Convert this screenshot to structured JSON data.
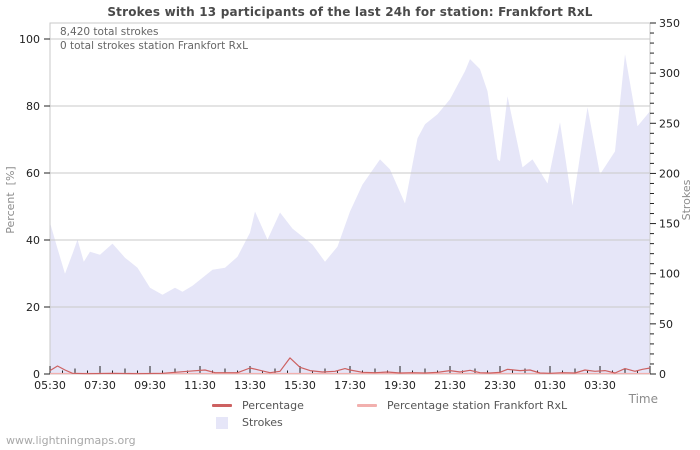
{
  "title": "Strokes with 13 participants of the last 24h for station: Frankfort RxL",
  "annotations": {
    "total_strokes": "8,420 total strokes",
    "station_total_strokes": "0 total strokes station Frankfort RxL"
  },
  "watermark": "www.lightningmaps.org",
  "axes": {
    "left": {
      "title": "Percent  [%]",
      "ticks": [
        0,
        20,
        40,
        60,
        80,
        100
      ],
      "range": [
        0,
        100
      ]
    },
    "right": {
      "title": "Strokes",
      "major_ticks": [
        0,
        50,
        100,
        150,
        200,
        250,
        300,
        350
      ],
      "minor_step": 10,
      "range": [
        0,
        350
      ]
    },
    "x": {
      "title": "Time",
      "labels": [
        "05:30",
        "07:30",
        "09:30",
        "11:30",
        "13:30",
        "15:30",
        "17:30",
        "19:30",
        "21:30",
        "23:30",
        "01:30",
        "03:30"
      ],
      "hours_span": 24,
      "label_step_hours": 2,
      "tick_step_hours": 0.5
    }
  },
  "legend": [
    {
      "label": "Percentage",
      "swatch": "line",
      "color": "#cd6161"
    },
    {
      "label": "Percentage station Frankfort RxL",
      "swatch": "line",
      "color": "#f2b0ae"
    },
    {
      "label": "Strokes",
      "swatch": "area",
      "color": "#e6e6f8"
    }
  ],
  "colors": {
    "area_fill": "#e6e6f8",
    "percentage_line": "#cd6161",
    "station_line": "#f2b0ae",
    "grid": "#c9c9c9",
    "tick": "#222222",
    "axis_text": "#222222"
  },
  "chart_data": {
    "type": "area",
    "title": "Strokes with 13 participants of the last 24h for station: Frankfort RxL",
    "x_unit": "hours since 05:30",
    "xlabel": "Time",
    "ylabel_left": "Percent [%]",
    "ylabel_right": "Strokes",
    "ylim_left": [
      0,
      100
    ],
    "ylim_right": [
      0,
      350
    ],
    "grid": true,
    "legend_position": "bottom",
    "x_tick_labels": [
      "05:30",
      "07:30",
      "09:30",
      "11:30",
      "13:30",
      "15:30",
      "17:30",
      "19:30",
      "21:30",
      "23:30",
      "01:30",
      "03:30"
    ],
    "series": [
      {
        "name": "Strokes",
        "render": "area",
        "axis": "right",
        "color": "#e6e6f8",
        "x": [
          0,
          0.3,
          0.6,
          0.9,
          1.1,
          1.35,
          1.6,
          2,
          2.5,
          3,
          3.5,
          4,
          4.5,
          5,
          5.3,
          5.7,
          6,
          6.5,
          7,
          7.5,
          8,
          8.2,
          8.7,
          9.2,
          9.7,
          10,
          10.5,
          11,
          11.5,
          12,
          12.5,
          13.2,
          13.6,
          14.2,
          14.7,
          15,
          15.5,
          16,
          16.6,
          16.8,
          17.2,
          17.5,
          17.9,
          18,
          18.3,
          18.9,
          19.3,
          19.9,
          20.4,
          20.9,
          21.5,
          22,
          22.6,
          23,
          23.5,
          24
        ],
        "values": [
          151,
          125,
          100,
          120,
          134,
          112,
          122,
          119,
          130,
          116,
          106,
          86,
          79,
          86,
          82,
          88,
          94,
          104,
          106,
          117,
          141,
          162,
          134,
          161,
          145,
          139,
          129,
          112,
          127,
          162,
          189,
          214,
          204,
          170,
          235,
          249,
          259,
          274,
          302,
          314,
          304,
          282,
          214,
          212,
          277,
          206,
          214,
          190,
          251,
          168,
          266,
          199,
          222,
          319,
          247,
          262
        ]
      },
      {
        "name": "Percentage",
        "render": "line",
        "axis": "left",
        "color": "#cd6161",
        "x": [
          0,
          0.3,
          0.6,
          0.9,
          1.5,
          2.5,
          3.5,
          4.5,
          5.5,
          6.2,
          6.6,
          7.5,
          8,
          8.4,
          8.8,
          9.2,
          9.6,
          10,
          10.4,
          10.9,
          11.4,
          11.8,
          12,
          12.5,
          13,
          13.5,
          14,
          14.5,
          15,
          15.5,
          16,
          16.4,
          16.8,
          17.2,
          17.6,
          18,
          18.3,
          18.8,
          19.2,
          19.6,
          20,
          20.5,
          21,
          21.4,
          21.8,
          22.2,
          22.6,
          23,
          23.4,
          23.7,
          24
        ],
        "values": [
          1,
          2.4,
          1.2,
          0.2,
          0.1,
          0.2,
          0.1,
          0.2,
          0.8,
          1.2,
          0.4,
          0.4,
          1.8,
          1.1,
          0.4,
          0.8,
          4.8,
          2,
          1,
          0.6,
          0.8,
          1.6,
          1.2,
          0.5,
          0.4,
          0.6,
          0.3,
          0.4,
          0.3,
          0.5,
          1,
          0.6,
          1.1,
          0.4,
          0.3,
          0.5,
          1.4,
          1,
          1.2,
          0.3,
          0.2,
          0.4,
          0.3,
          1.2,
          0.8,
          1,
          0.3,
          1.6,
          0.8,
          1.4,
          1.8
        ]
      },
      {
        "name": "Percentage station Frankfort RxL",
        "render": "line",
        "axis": "left",
        "color": "#f2b0ae",
        "x": [
          0,
          24
        ],
        "values": [
          0,
          0
        ]
      }
    ],
    "annotations": [
      "8,420 total strokes",
      "0 total strokes station Frankfort RxL"
    ]
  }
}
